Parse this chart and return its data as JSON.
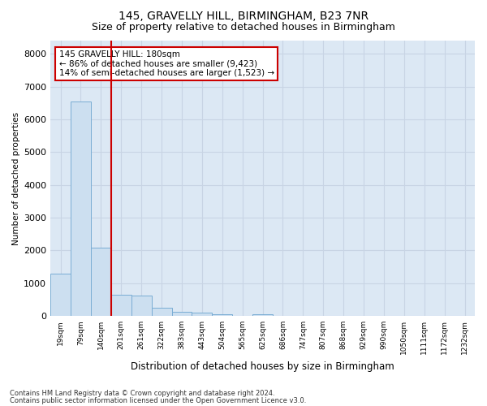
{
  "title": "145, GRAVELLY HILL, BIRMINGHAM, B23 7NR",
  "subtitle": "Size of property relative to detached houses in Birmingham",
  "xlabel": "Distribution of detached houses by size in Birmingham",
  "ylabel": "Number of detached properties",
  "footnote1": "Contains HM Land Registry data © Crown copyright and database right 2024.",
  "footnote2": "Contains public sector information licensed under the Open Government Licence v3.0.",
  "annotation_line1": "145 GRAVELLY HILL: 180sqm",
  "annotation_line2": "← 86% of detached houses are smaller (9,423)",
  "annotation_line3": "14% of semi-detached houses are larger (1,523) →",
  "bar_color": "#ccdff0",
  "bar_edge_color": "#7aadd4",
  "vline_color": "#cc0000",
  "annotation_box_edge": "#cc0000",
  "grid_color": "#c8d4e4",
  "bg_color": "#dce8f4",
  "categories": [
    "19sqm",
    "79sqm",
    "140sqm",
    "201sqm",
    "261sqm",
    "322sqm",
    "383sqm",
    "443sqm",
    "504sqm",
    "565sqm",
    "625sqm",
    "686sqm",
    "747sqm",
    "807sqm",
    "868sqm",
    "929sqm",
    "990sqm",
    "1050sqm",
    "1111sqm",
    "1172sqm",
    "1232sqm"
  ],
  "values": [
    1300,
    6550,
    2080,
    640,
    630,
    250,
    130,
    110,
    60,
    0,
    60,
    0,
    0,
    0,
    0,
    0,
    0,
    0,
    0,
    0,
    0
  ],
  "ylim": [
    0,
    8400
  ],
  "yticks": [
    0,
    1000,
    2000,
    3000,
    4000,
    5000,
    6000,
    7000,
    8000
  ],
  "vline_x_index": 2.5,
  "title_fontsize": 10,
  "subtitle_fontsize": 9
}
